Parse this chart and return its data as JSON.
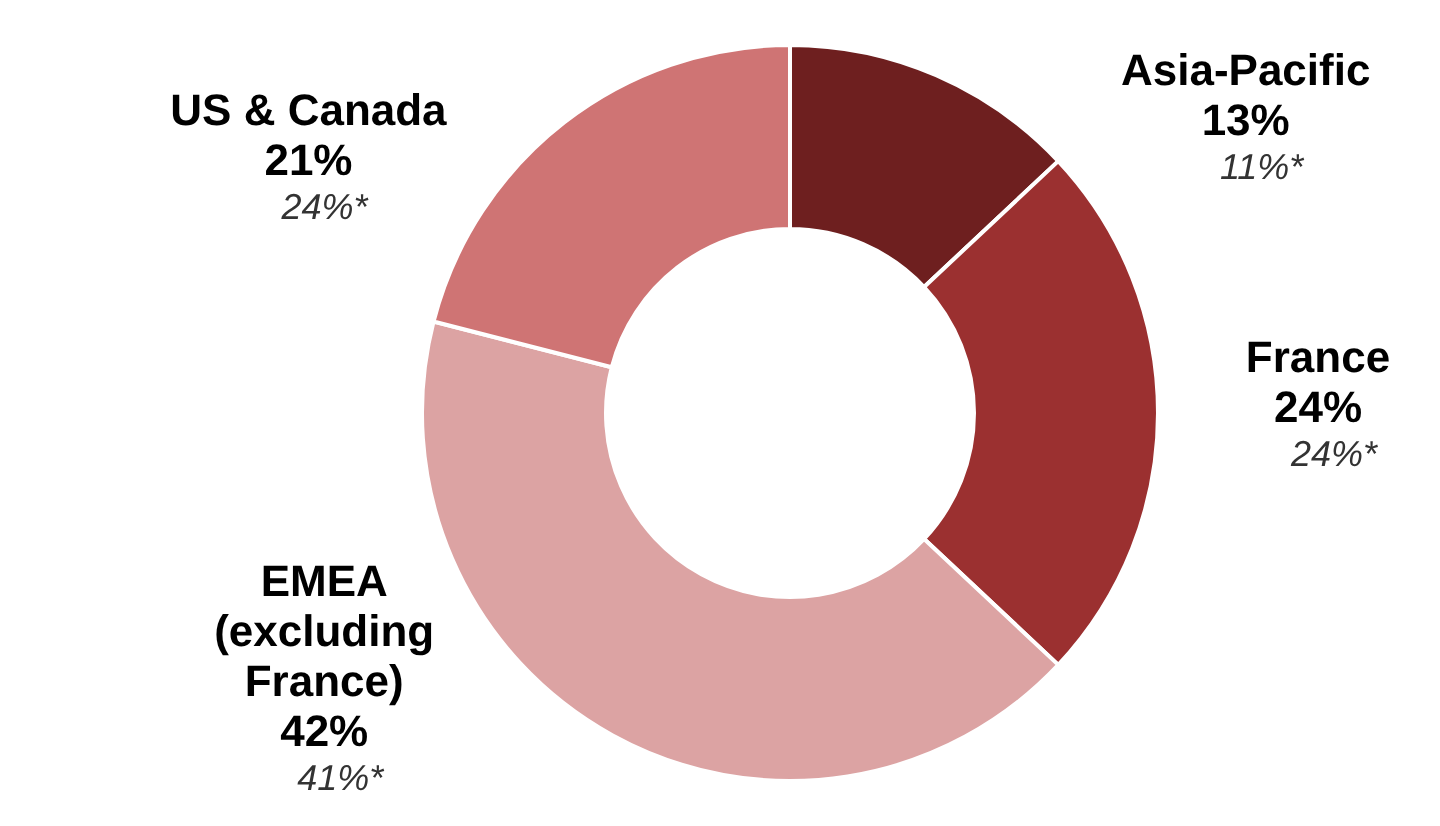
{
  "chart_data": {
    "type": "donut",
    "categories": [
      "Asia-Pacific",
      "France",
      "EMEA (excluding France)",
      "US & Canada"
    ],
    "values": [
      13,
      24,
      42,
      21
    ],
    "colors": [
      "#6e1f1f",
      "#9b3030",
      "#dca3a3",
      "#cf7474"
    ],
    "value_labels": [
      "13%",
      "24%",
      "42%",
      "21%"
    ],
    "annotations": [
      "11%*",
      "24%*",
      "41%*",
      "24%*"
    ],
    "legend": false
  }
}
